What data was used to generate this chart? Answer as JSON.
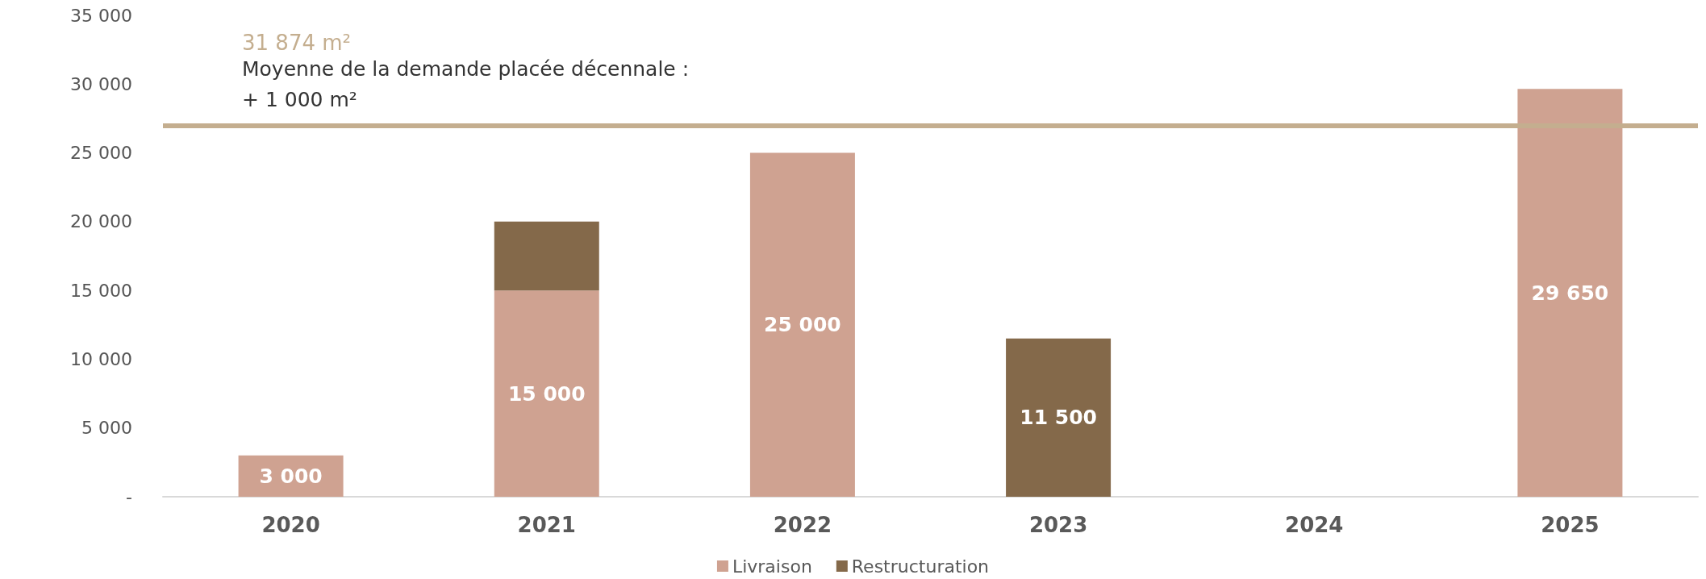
{
  "chart_data": {
    "type": "bar",
    "stacked": true,
    "categories": [
      "2020",
      "2021",
      "2022",
      "2023",
      "2024",
      "2025"
    ],
    "series": [
      {
        "name": "Livraison",
        "color": "#cfa291",
        "values": [
          3000,
          15000,
          25000,
          null,
          null,
          29650
        ],
        "value_labels": [
          "3 000",
          "15 000",
          "25 000",
          null,
          null,
          "29 650"
        ]
      },
      {
        "name": "Restructuration",
        "color": "#84694a",
        "values": [
          null,
          5000,
          null,
          11500,
          null,
          null
        ],
        "value_labels": [
          null,
          null,
          null,
          "11 500",
          null,
          null
        ]
      }
    ],
    "ylim": [
      0,
      35000
    ],
    "yticks": [
      {
        "value": 0,
        "label": "-"
      },
      {
        "value": 5000,
        "label": "5 000"
      },
      {
        "value": 10000,
        "label": "10 000"
      },
      {
        "value": 15000,
        "label": "15 000"
      },
      {
        "value": 20000,
        "label": "20 000"
      },
      {
        "value": 25000,
        "label": "25 000"
      },
      {
        "value": 30000,
        "label": "30 000"
      },
      {
        "value": 35000,
        "label": "35 000"
      }
    ],
    "grid": false,
    "legend": "bottom",
    "ref_lines": [
      {
        "axis": "y",
        "value": 27000,
        "label": "31 874 m²",
        "color": "#c4ae8f"
      }
    ],
    "annotations": [
      "Moyenne de la demande placée décennale :",
      "+ 1 000 m²"
    ]
  }
}
